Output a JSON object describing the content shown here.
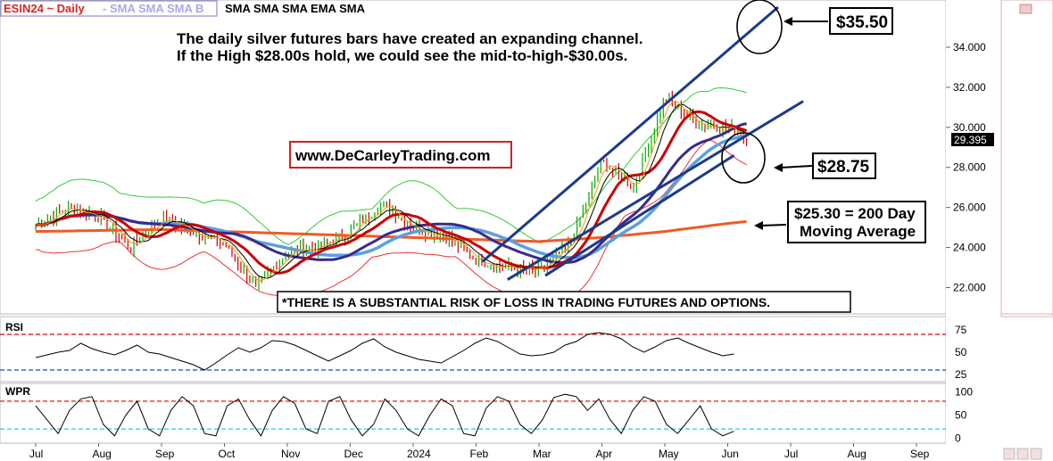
{
  "header": {
    "symbol_label": "ESIN24 ~ Daily",
    "indicators_faded": "- SMA SMA SMA B",
    "indicators": "SMA SMA SMA EMA SMA"
  },
  "annotations": {
    "headline_line1": "The daily silver futures bars have created an expanding channel.",
    "headline_line2": "If the High $28.00s hold, we could see the mid-to-high-$30.00s.",
    "website": "www.DeCarleyTrading.com",
    "target_high": "$35.50",
    "support": "$28.75",
    "ma200_line1": "$25.30 = 200 Day",
    "ma200_line2": "Moving Average",
    "disclaimer": "*THERE IS A SUBSTANTIAL RISK OF LOSS IN TRADING FUTURES AND OPTIONS."
  },
  "colors": {
    "price_up": "#00aa00",
    "price_down": "#cc0000",
    "channel": "#1a3a8c",
    "ma200": "#f05a28",
    "red_ma": "#cc0000",
    "navy_ma": "#3a2a8c",
    "light_blue_ma": "#5aa0e0",
    "bb_upper": "#33cc33",
    "bb_lower": "#ee3333",
    "rsi_upper": "#dd0000",
    "rsi_lower": "#0055dd",
    "wpr_upper": "#dd0000",
    "wpr_lower": "#00cccc"
  },
  "chart_data": [
    {
      "type": "line",
      "panel": "price",
      "title": "",
      "x": [
        "Jul",
        "Aug",
        "Sep",
        "Oct",
        "Nov",
        "Dec",
        "2024",
        "Feb",
        "Mar",
        "Apr",
        "May",
        "Jun",
        "Jul",
        "Aug",
        "Sep"
      ],
      "y_ticks": [
        "22.000",
        "24.000",
        "26.000",
        "28.000",
        "30.000",
        "32.000",
        "34.000"
      ],
      "ylim": [
        21,
        36
      ],
      "last_price": "29.395",
      "series": [
        {
          "x": [
            0,
            0.5,
            1,
            1.5,
            2,
            2.5,
            3,
            3.5,
            4,
            4.5,
            5,
            5.5,
            6,
            6.5,
            7,
            7.5,
            8,
            8.5,
            9,
            9.5,
            10,
            10.5,
            11,
            11.3
          ],
          "values": [
            25.1,
            26.0,
            25.6,
            24.0,
            25.5,
            24.8,
            24.2,
            22.0,
            23.8,
            24.0,
            24.8,
            26.2,
            25.0,
            24.6,
            23.4,
            23.0,
            22.8,
            24.2,
            28.3,
            27.0,
            31.5,
            30.2,
            30.0,
            29.4
          ]
        }
      ],
      "ma200": {
        "x": [
          0,
          2,
          4,
          6,
          8,
          9,
          10,
          11,
          11.3
        ],
        "values": [
          24.8,
          24.9,
          24.7,
          24.5,
          24.3,
          24.5,
          24.8,
          25.2,
          25.3
        ]
      },
      "channel_upper": {
        "x": [
          7.1,
          11.8
        ],
        "values": [
          23.3,
          36.0
        ]
      },
      "channel_lower": {
        "x": [
          7.5,
          12.2
        ],
        "values": [
          22.4,
          31.3
        ]
      }
    },
    {
      "type": "line",
      "panel": "rsi",
      "title": "RSI",
      "y_ticks": [
        "25",
        "50",
        "75"
      ],
      "ylim": [
        20,
        85
      ],
      "levels": [
        70,
        30
      ],
      "values": [
        44,
        47,
        50,
        52,
        60,
        54,
        50,
        47,
        52,
        58,
        50,
        48,
        44,
        40,
        36,
        30,
        38,
        47,
        55,
        50,
        55,
        63,
        62,
        58,
        52,
        46,
        40,
        46,
        52,
        60,
        65,
        56,
        50,
        46,
        42,
        40,
        38,
        45,
        52,
        60,
        66,
        62,
        55,
        48,
        46,
        47,
        50,
        58,
        62,
        70,
        72,
        70,
        65,
        56,
        50,
        56,
        63,
        66,
        60,
        55,
        50,
        46,
        48
      ]
    },
    {
      "type": "line",
      "panel": "wpr",
      "title": "WPR",
      "y_ticks": [
        "0",
        "50",
        "100"
      ],
      "ylim": [
        -5,
        105
      ],
      "levels": [
        80,
        20
      ],
      "values": [
        70,
        40,
        10,
        60,
        85,
        90,
        30,
        5,
        50,
        80,
        20,
        5,
        60,
        90,
        70,
        10,
        5,
        70,
        85,
        40,
        5,
        60,
        90,
        75,
        20,
        10,
        80,
        90,
        40,
        5,
        30,
        85,
        60,
        20,
        5,
        50,
        85,
        70,
        10,
        5,
        65,
        90,
        80,
        30,
        10,
        40,
        88,
        95,
        90,
        60,
        85,
        40,
        10,
        60,
        90,
        80,
        30,
        10,
        40,
        70,
        20,
        5,
        15
      ]
    }
  ]
}
